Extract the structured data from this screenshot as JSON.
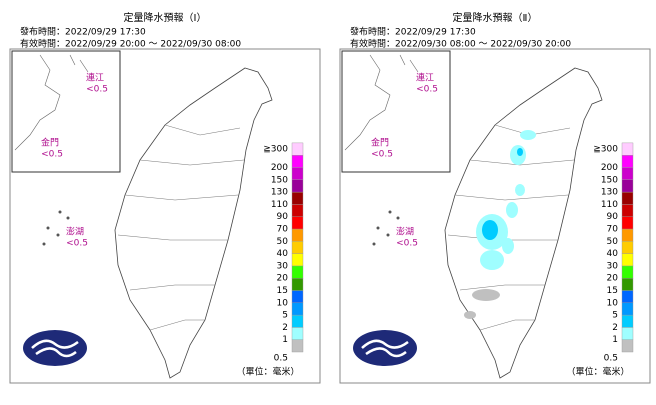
{
  "panels": [
    {
      "title": "定量降水預報（Ⅰ）",
      "issued": "發布時間：2022/09/29 17:30",
      "valid": "有效時間：2022/09/29 20:00 ～ 2022/09/30 08:00",
      "islands": [
        {
          "name": "連江",
          "value": "<0.5"
        },
        {
          "name": "金門",
          "value": "<0.5"
        },
        {
          "name": "澎湖",
          "value": "<0.5"
        }
      ]
    },
    {
      "title": "定量降水預報（Ⅱ）",
      "issued": "發布時間：2022/09/29 17:30",
      "valid": "有效時間：2022/09/30 08:00 ～ 2022/09/30 20:00",
      "islands": [
        {
          "name": "連江",
          "value": "<0.5"
        },
        {
          "name": "金門",
          "value": "<0.5"
        },
        {
          "name": "澎湖",
          "value": "<0.5"
        }
      ]
    }
  ],
  "legend": {
    "unit": "（單位：毫米）",
    "items": [
      {
        "label": "0.5",
        "color": "#c0c0c0"
      },
      {
        "label": "1",
        "color": "#9ffeff"
      },
      {
        "label": "2",
        "color": "#00ccff"
      },
      {
        "label": "5",
        "color": "#0099ff"
      },
      {
        "label": "10",
        "color": "#0066ff"
      },
      {
        "label": "15",
        "color": "#339900"
      },
      {
        "label": "20",
        "color": "#33ff00"
      },
      {
        "label": "30",
        "color": "#ffff00"
      },
      {
        "label": "40",
        "color": "#ffcc00"
      },
      {
        "label": "50",
        "color": "#ff9900"
      },
      {
        "label": "70",
        "color": "#ff0000"
      },
      {
        "label": "90",
        "color": "#cc0000"
      },
      {
        "label": "110",
        "color": "#990000"
      },
      {
        "label": "130",
        "color": "#990099"
      },
      {
        "label": "150",
        "color": "#cc00cc"
      },
      {
        "label": "200",
        "color": "#ff00ff"
      },
      {
        "label": "≧300",
        "color": "#ffccff"
      }
    ]
  }
}
